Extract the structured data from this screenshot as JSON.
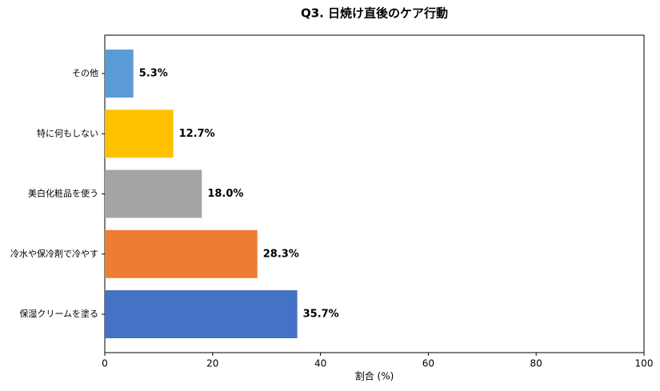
{
  "chart_data": {
    "type": "barh",
    "title": "Q3. 日焼け直後のケア行動",
    "xlabel": "割合 (%)",
    "categories": [
      "その他",
      "特に何もしない",
      "美白化粧品を使う",
      "冷水や保冷剤で冷やす",
      "保湿クリームを塗る"
    ],
    "values": [
      5.3,
      12.7,
      18.0,
      28.3,
      35.7
    ],
    "value_labels": [
      "5.3%",
      "12.7%",
      "18.0%",
      "28.3%",
      "35.7%"
    ],
    "colors": [
      "#5b9bd5",
      "#ffc000",
      "#a5a5a5",
      "#ed7d31",
      "#4472c4"
    ],
    "xlim": [
      0,
      100
    ],
    "xticks": [
      0,
      20,
      40,
      60,
      80,
      100
    ],
    "grid": false
  }
}
